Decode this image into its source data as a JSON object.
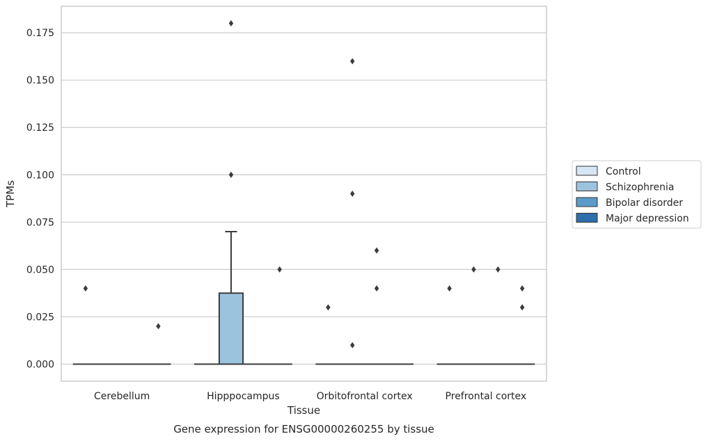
{
  "chart_data": {
    "type": "box",
    "caption": "Gene expression for ENSG00000260255 by tissue",
    "xlabel": "Tissue",
    "ylabel": "TPMs",
    "ylim": [
      -0.009,
      0.189
    ],
    "yticks": [
      "0.000",
      "0.025",
      "0.050",
      "0.075",
      "0.100",
      "0.125",
      "0.150",
      "0.175"
    ],
    "grid": "horizontal",
    "legend_position": "right",
    "categories": [
      "Cerebellum",
      "Hipppocampus",
      "Orbitofrontal cortex",
      "Prefrontal cortex"
    ],
    "hue_order": [
      "Control",
      "Schizophrenia",
      "Bipolar disorder",
      "Major depression"
    ],
    "series": [
      {
        "name": "Control",
        "color": "#d6e6f4",
        "boxes": [
          {
            "q1": 0,
            "median": 0,
            "q3": 0,
            "whislo": 0,
            "whishi": 0,
            "outliers": [
              0.04
            ]
          },
          {
            "q1": 0,
            "median": 0,
            "q3": 0,
            "whislo": 0,
            "whishi": 0,
            "outliers": []
          },
          {
            "q1": 0,
            "median": 0,
            "q3": 0,
            "whislo": 0,
            "whishi": 0,
            "outliers": [
              0.03
            ]
          },
          {
            "q1": 0,
            "median": 0,
            "q3": 0,
            "whislo": 0,
            "whishi": 0,
            "outliers": [
              0.04
            ]
          }
        ]
      },
      {
        "name": "Schizophrenia",
        "color": "#9cc3de",
        "boxes": [
          {
            "q1": 0,
            "median": 0,
            "q3": 0,
            "whislo": 0,
            "whishi": 0,
            "outliers": []
          },
          {
            "q1": 0,
            "median": 0,
            "q3": 0.0375,
            "whislo": 0,
            "whishi": 0.07,
            "outliers": [
              0.18,
              0.1
            ]
          },
          {
            "q1": 0,
            "median": 0,
            "q3": 0,
            "whislo": 0,
            "whishi": 0,
            "outliers": [
              0.16,
              0.09,
              0.01
            ]
          },
          {
            "q1": 0,
            "median": 0,
            "q3": 0,
            "whislo": 0,
            "whishi": 0,
            "outliers": [
              0.05
            ]
          }
        ]
      },
      {
        "name": "Bipolar disorder",
        "color": "#5a9bc9",
        "boxes": [
          {
            "q1": 0,
            "median": 0,
            "q3": 0,
            "whislo": 0,
            "whishi": 0,
            "outliers": []
          },
          {
            "q1": 0,
            "median": 0,
            "q3": 0,
            "whislo": 0,
            "whishi": 0,
            "outliers": []
          },
          {
            "q1": 0,
            "median": 0,
            "q3": 0,
            "whislo": 0,
            "whishi": 0,
            "outliers": [
              0.06,
              0.04
            ]
          },
          {
            "q1": 0,
            "median": 0,
            "q3": 0,
            "whislo": 0,
            "whishi": 0,
            "outliers": [
              0.05
            ]
          }
        ]
      },
      {
        "name": "Major depression",
        "color": "#2e6fac",
        "boxes": [
          {
            "q1": 0,
            "median": 0,
            "q3": 0,
            "whislo": 0,
            "whishi": 0,
            "outliers": [
              0.02
            ]
          },
          {
            "q1": 0,
            "median": 0,
            "q3": 0,
            "whislo": 0,
            "whishi": 0,
            "outliers": [
              0.05
            ]
          },
          {
            "q1": 0,
            "median": 0,
            "q3": 0,
            "whislo": 0,
            "whishi": 0,
            "outliers": []
          },
          {
            "q1": 0,
            "median": 0,
            "q3": 0,
            "whislo": 0,
            "whishi": 0,
            "outliers": [
              0.04,
              0.03
            ]
          }
        ]
      }
    ]
  }
}
